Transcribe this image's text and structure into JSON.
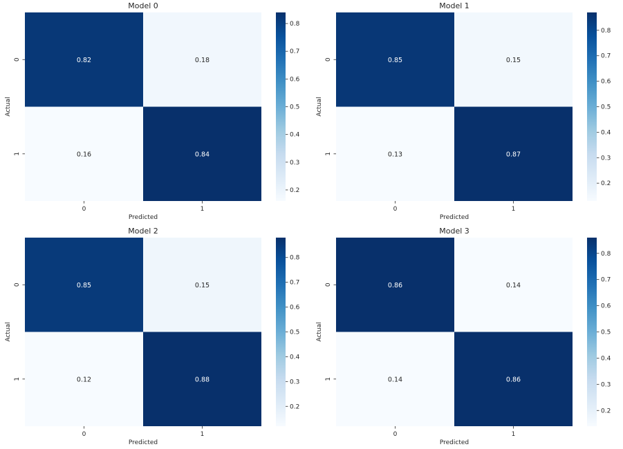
{
  "chart_data": [
    {
      "type": "heatmap",
      "title": "Model 0",
      "xlabel": "Predicted",
      "ylabel": "Actual",
      "x_categories": [
        "0",
        "1"
      ],
      "y_categories": [
        "0",
        "1"
      ],
      "values": [
        [
          0.82,
          0.18
        ],
        [
          0.16,
          0.84
        ]
      ],
      "labels": [
        [
          "0.82",
          "0.18"
        ],
        [
          "0.16",
          "0.84"
        ]
      ],
      "colormap": "Blues",
      "vmin": 0.16,
      "vmax": 0.84,
      "colorbar_ticks": [
        "0.2",
        "0.3",
        "0.4",
        "0.5",
        "0.6",
        "0.7",
        "0.8"
      ]
    },
    {
      "type": "heatmap",
      "title": "Model 1",
      "xlabel": "Predicted",
      "ylabel": "Actual",
      "x_categories": [
        "0",
        "1"
      ],
      "y_categories": [
        "0",
        "1"
      ],
      "values": [
        [
          0.85,
          0.15
        ],
        [
          0.13,
          0.87
        ]
      ],
      "labels": [
        [
          "0.85",
          "0.15"
        ],
        [
          "0.13",
          "0.87"
        ]
      ],
      "colormap": "Blues",
      "vmin": 0.13,
      "vmax": 0.87,
      "colorbar_ticks": [
        "0.2",
        "0.3",
        "0.4",
        "0.5",
        "0.6",
        "0.7",
        "0.8"
      ]
    },
    {
      "type": "heatmap",
      "title": "Model 2",
      "xlabel": "Predicted",
      "ylabel": "Actual",
      "x_categories": [
        "0",
        "1"
      ],
      "y_categories": [
        "0",
        "1"
      ],
      "values": [
        [
          0.85,
          0.15
        ],
        [
          0.12,
          0.88
        ]
      ],
      "labels": [
        [
          "0.85",
          "0.15"
        ],
        [
          "0.12",
          "0.88"
        ]
      ],
      "colormap": "Blues",
      "vmin": 0.12,
      "vmax": 0.88,
      "colorbar_ticks": [
        "0.2",
        "0.3",
        "0.4",
        "0.5",
        "0.6",
        "0.7",
        "0.8"
      ]
    },
    {
      "type": "heatmap",
      "title": "Model 3",
      "xlabel": "Predicted",
      "ylabel": "Actual",
      "x_categories": [
        "0",
        "1"
      ],
      "y_categories": [
        "0",
        "1"
      ],
      "values": [
        [
          0.86,
          0.14
        ],
        [
          0.14,
          0.86
        ]
      ],
      "labels": [
        [
          "0.86",
          "0.14"
        ],
        [
          "0.14",
          "0.86"
        ]
      ],
      "colormap": "Blues",
      "vmin": 0.14,
      "vmax": 0.86,
      "colorbar_ticks": [
        "0.2",
        "0.3",
        "0.4",
        "0.5",
        "0.6",
        "0.7",
        "0.8"
      ]
    }
  ]
}
